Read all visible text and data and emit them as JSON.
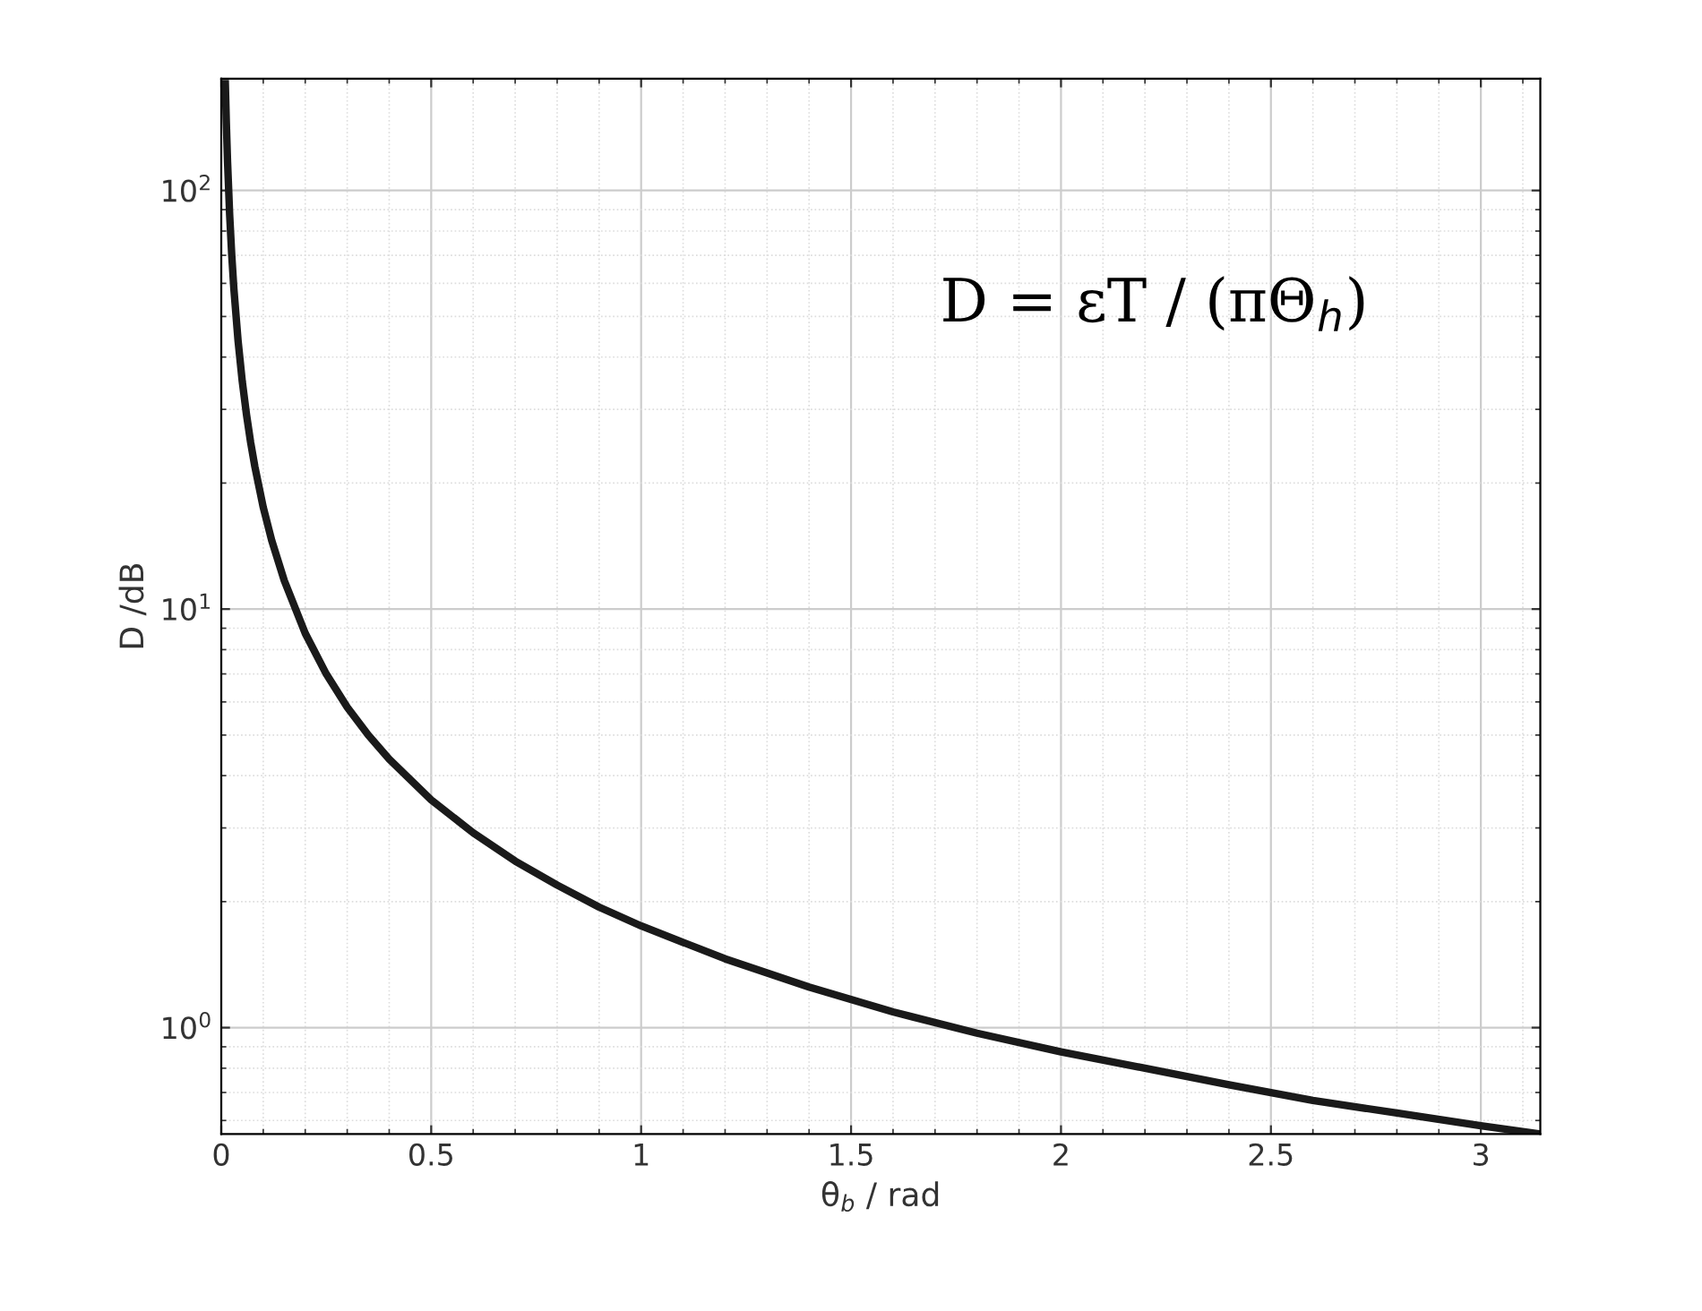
{
  "chart_data": {
    "type": "line",
    "xlabel": "θ$_{b}$ / rad",
    "ylabel": "D /dB",
    "x": [
      0.0097,
      0.012,
      0.015,
      0.02,
      0.025,
      0.03,
      0.04,
      0.05,
      0.06,
      0.07,
      0.08,
      0.1,
      0.12,
      0.15,
      0.2,
      0.25,
      0.3,
      0.35,
      0.4,
      0.5,
      0.6,
      0.7,
      0.8,
      0.9,
      1.0,
      1.2,
      1.4,
      1.6,
      1.8,
      2.0,
      2.2,
      2.4,
      2.6,
      2.8,
      3.0,
      3.1416
    ],
    "series": [
      {
        "color": "#1a1a1a",
        "values": [
          180,
          146,
          117,
          87.5,
          70,
          58.3,
          43.8,
          35,
          29.2,
          25,
          21.9,
          17.5,
          14.6,
          11.7,
          8.75,
          7,
          5.83,
          5,
          4.38,
          3.5,
          2.92,
          2.5,
          2.19,
          1.94,
          1.75,
          1.46,
          1.25,
          1.09,
          0.97,
          0.875,
          0.8,
          0.73,
          0.67,
          0.625,
          0.583,
          0.557
        ]
      }
    ],
    "log": "y",
    "xlim": [
      0,
      3.1416
    ],
    "ylim": [
      0.557,
      185
    ],
    "xticks": [
      0,
      0.5,
      1,
      1.5,
      2,
      2.5,
      3
    ],
    "yticks": [
      {
        "value": 1,
        "label": "10$^{0}$"
      },
      {
        "value": 10,
        "label": "10$^{1}$"
      },
      {
        "value": 100,
        "label": "10$^{2}$"
      }
    ],
    "grid": true,
    "line_style": "solid",
    "marker": "none",
    "annotations": [
      "D = εT / (πΘ$_{h}$)"
    ]
  }
}
